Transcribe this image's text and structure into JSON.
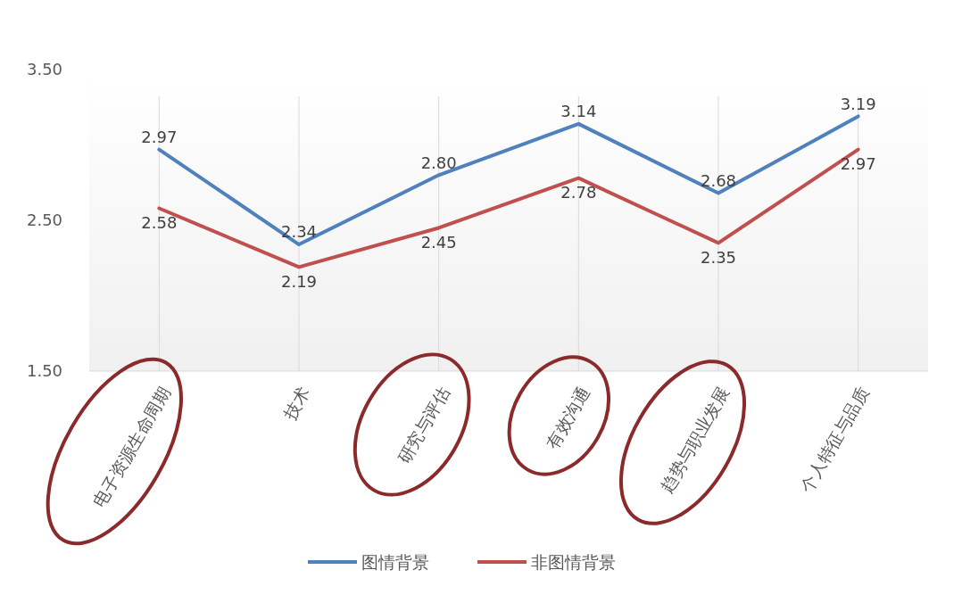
{
  "chart_data": {
    "type": "line",
    "categories": [
      "电子资源生命周期",
      "技术",
      "研究与评估",
      "有效沟通",
      "趋势与职业发展",
      "个人特征与品质"
    ],
    "series": [
      {
        "name": "图情背景",
        "color": "#4f81bd",
        "values": [
          2.97,
          2.34,
          2.8,
          3.14,
          2.68,
          3.19
        ]
      },
      {
        "name": "非图情背景",
        "color": "#c0504d",
        "values": [
          2.58,
          2.19,
          2.45,
          2.78,
          2.35,
          2.97
        ]
      }
    ],
    "ylim": [
      1.5,
      3.5
    ],
    "yticks": [
      {
        "value": 3.5,
        "label": "3.50"
      },
      {
        "value": 2.5,
        "label": "2.50"
      },
      {
        "value": 1.5,
        "label": "1.50"
      }
    ],
    "grid": "x",
    "legend": "bottom",
    "value_labels": [
      [
        "2.97",
        "2.34",
        "2.80",
        "3.14",
        "2.68",
        "3.19"
      ],
      [
        "2.58",
        "2.19",
        "2.45",
        "2.78",
        "2.35",
        "2.97"
      ]
    ],
    "marker": "none",
    "line_style": "solid"
  }
}
